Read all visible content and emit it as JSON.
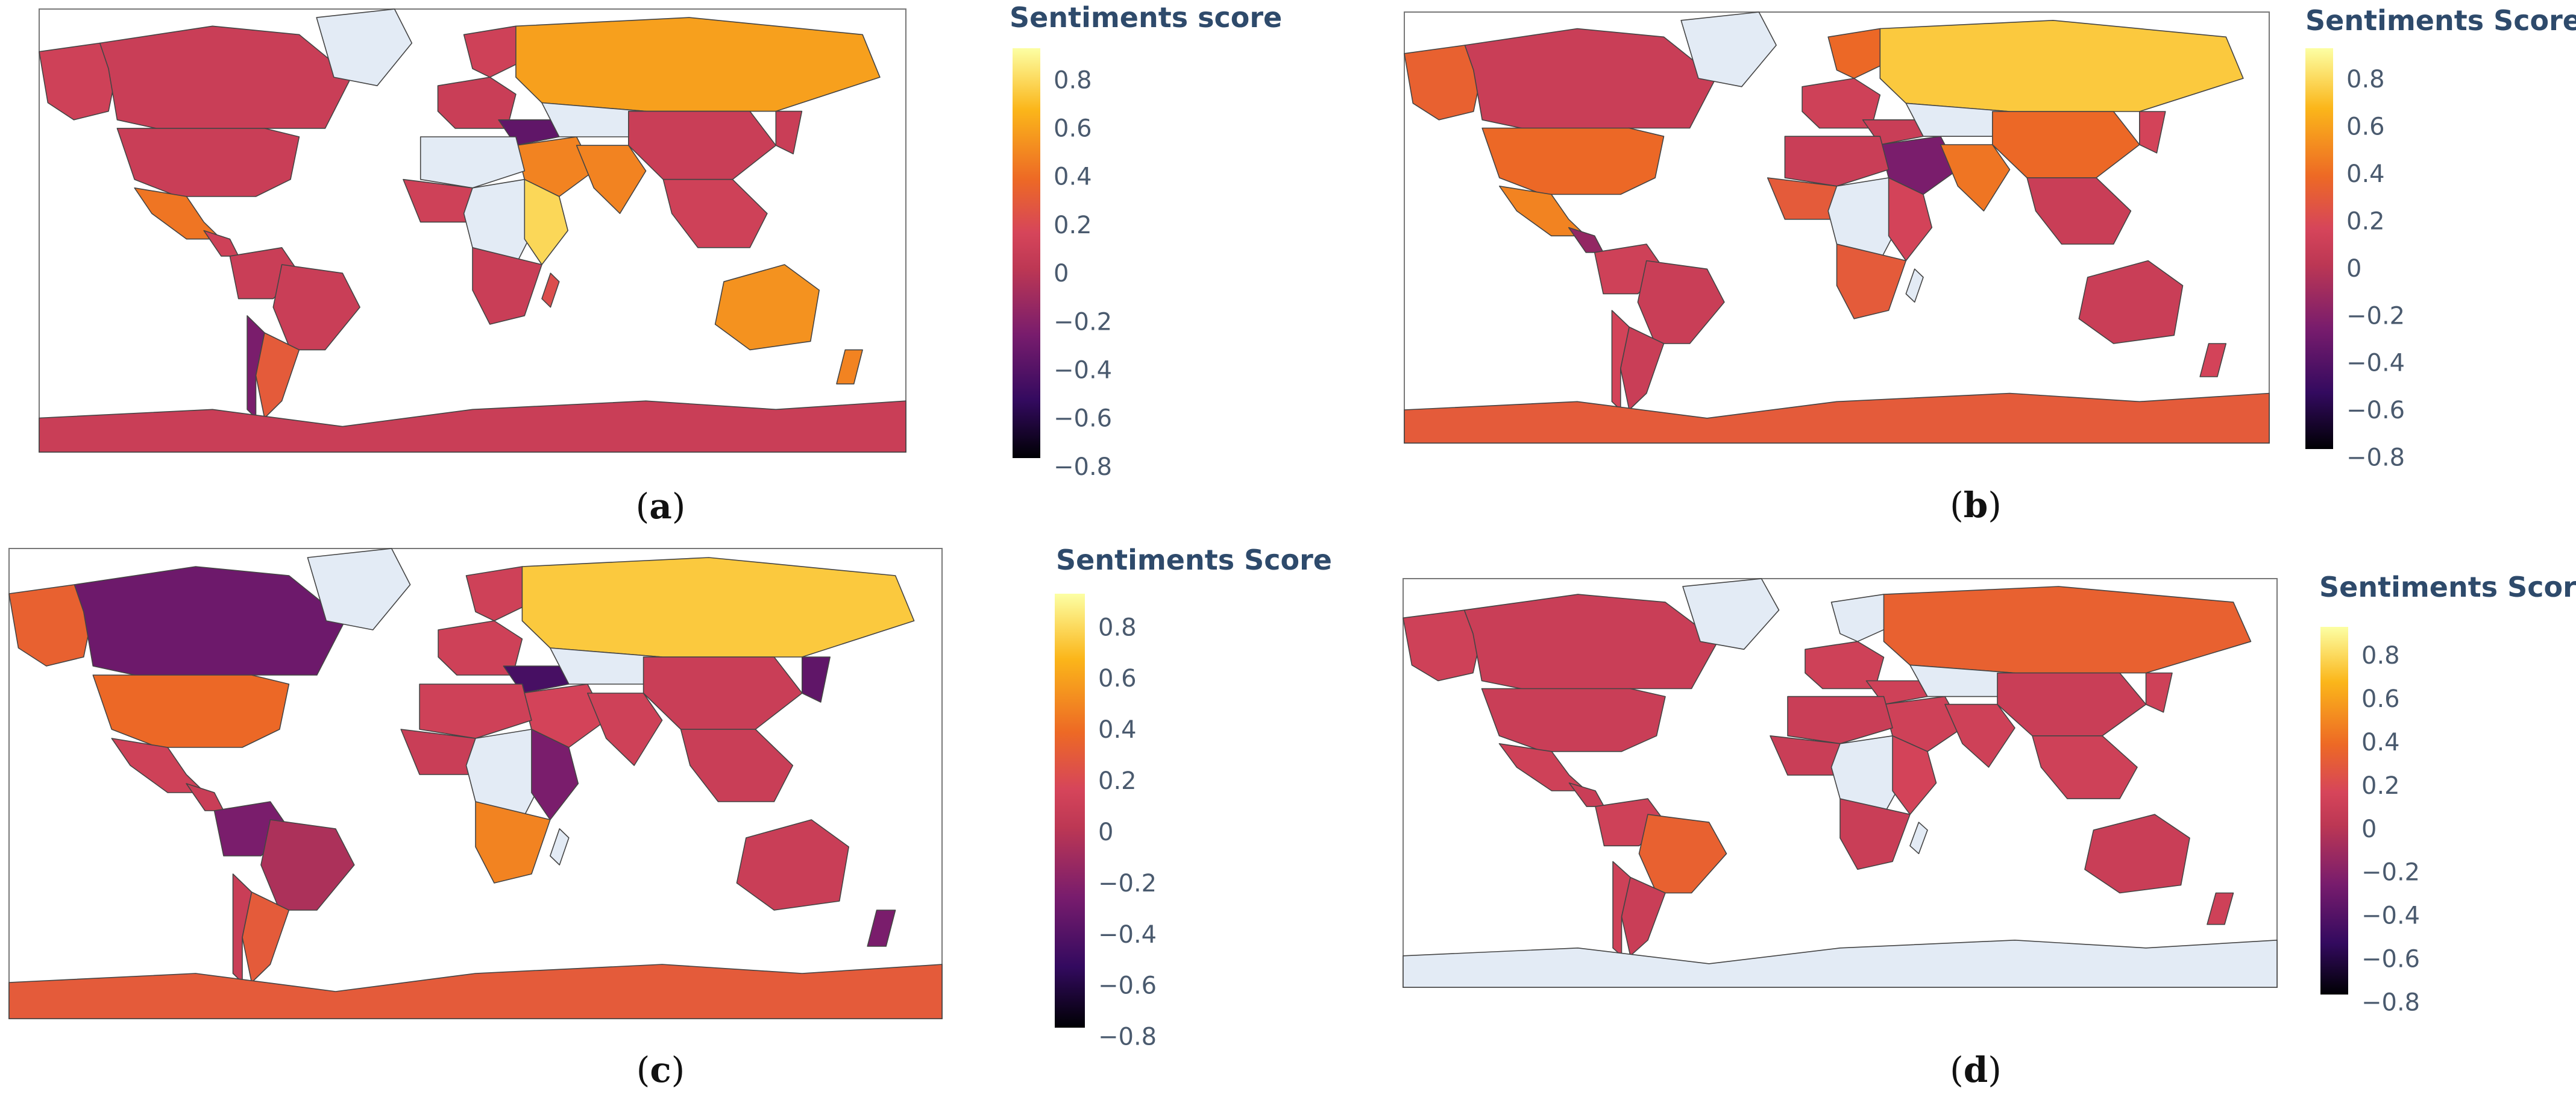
{
  "palette": {
    "ocean": "#ffffff",
    "no_data": "#e3ebf5",
    "border": "#444444",
    "frame": "#777777",
    "colorscale": [
      "#000004",
      "#330a5f",
      "#781c6d",
      "#bc3754",
      "#d6455a",
      "#ed6925",
      "#fbb61a",
      "#fcffa4"
    ]
  },
  "panels": [
    {
      "id": "a",
      "label_open": "(",
      "label_letter": "a",
      "label_close": ")",
      "colorbar": {
        "title": "Sentiments score",
        "ticks": [
          "0.8",
          "0.6",
          "0.4",
          "0.2",
          "0",
          "−0.2",
          "−0.4",
          "−0.6",
          "−0.8"
        ]
      },
      "regions": {
        "north_america": 0.0,
        "usa": 0.0,
        "alaska": 0.05,
        "greenland": null,
        "mexico": 0.45,
        "central_america": 0.05,
        "south_america_north": 0.0,
        "brazil": 0.0,
        "argentina": 0.3,
        "chile": -0.4,
        "europe_west": 0.0,
        "scandinavia": 0.05,
        "russia": 0.6,
        "central_asia": null,
        "middle_east": 0.5,
        "turkey_caucasus": -0.5,
        "india": 0.5,
        "china": 0.0,
        "southeast_asia": 0.05,
        "japan": 0.0,
        "north_africa": null,
        "west_africa": 0.05,
        "central_africa": null,
        "east_africa": 0.8,
        "southern_africa": 0.0,
        "madagascar": 0.2,
        "australia": 0.55,
        "new_zealand": 0.5,
        "antarctica": 0.0
      }
    },
    {
      "id": "b",
      "label_open": "(",
      "label_letter": "b",
      "label_close": ")",
      "colorbar": {
        "title": "Sentiments Score",
        "ticks": [
          "0.8",
          "0.6",
          "0.4",
          "0.2",
          "0",
          "−0.2",
          "−0.4",
          "−0.6",
          "−0.8"
        ]
      },
      "regions": {
        "north_america": 0.0,
        "usa": 0.4,
        "alaska": 0.35,
        "greenland": null,
        "mexico": 0.5,
        "central_america": -0.3,
        "south_america_north": 0.05,
        "brazil": 0.0,
        "argentina": 0.0,
        "chile": 0.1,
        "europe_west": 0.05,
        "scandinavia": 0.4,
        "russia": 0.75,
        "central_asia": null,
        "middle_east": -0.4,
        "turkey_caucasus": 0.0,
        "india": 0.45,
        "china": 0.4,
        "southeast_asia": 0.0,
        "japan": 0.1,
        "north_africa": 0.0,
        "west_africa": 0.3,
        "central_africa": null,
        "east_africa": 0.1,
        "southern_africa": 0.3,
        "madagascar": null,
        "australia": 0.0,
        "new_zealand": 0.1,
        "antarctica": 0.3
      }
    },
    {
      "id": "c",
      "label_open": "(",
      "label_letter": "c",
      "label_close": ")",
      "colorbar": {
        "title": "Sentiments Score",
        "ticks": [
          "0.8",
          "0.6",
          "0.4",
          "0.2",
          "0",
          "−0.2",
          "−0.4",
          "−0.6",
          "−0.8"
        ]
      },
      "regions": {
        "north_america": -0.45,
        "usa": 0.4,
        "alaska": 0.35,
        "greenland": null,
        "mexico": 0.05,
        "central_america": 0.0,
        "south_america_north": -0.4,
        "brazil": -0.2,
        "argentina": 0.3,
        "chile": 0.0,
        "europe_west": 0.05,
        "scandinavia": 0.05,
        "russia": 0.75,
        "central_asia": null,
        "middle_east": 0.1,
        "turkey_caucasus": -0.6,
        "india": 0.05,
        "china": 0.0,
        "southeast_asia": 0.0,
        "japan": -0.5,
        "north_africa": 0.05,
        "west_africa": 0.0,
        "central_africa": null,
        "east_africa": -0.4,
        "southern_africa": 0.5,
        "madagascar": null,
        "australia": 0.0,
        "new_zealand": -0.4,
        "antarctica": 0.3
      }
    },
    {
      "id": "d",
      "label_open": "(",
      "label_letter": "d",
      "label_close": ")",
      "colorbar": {
        "title": "Sentiments Score",
        "ticks": [
          "0.8",
          "0.6",
          "0.4",
          "0.2",
          "0",
          "−0.2",
          "−0.4",
          "−0.6",
          "−0.8"
        ]
      },
      "regions": {
        "north_america": 0.0,
        "usa": 0.0,
        "alaska": 0.05,
        "greenland": null,
        "mexico": 0.05,
        "central_america": 0.0,
        "south_america_north": 0.05,
        "brazil": 0.35,
        "argentina": 0.0,
        "chile": 0.05,
        "europe_west": 0.05,
        "scandinavia": null,
        "russia": 0.35,
        "central_asia": null,
        "middle_east": 0.05,
        "turkey_caucasus": 0.05,
        "india": 0.05,
        "china": 0.0,
        "southeast_asia": 0.05,
        "japan": 0.05,
        "north_africa": 0.0,
        "west_africa": 0.0,
        "central_africa": null,
        "east_africa": 0.1,
        "southern_africa": 0.0,
        "madagascar": null,
        "australia": 0.0,
        "new_zealand": 0.05,
        "antarctica": null
      }
    }
  ]
}
